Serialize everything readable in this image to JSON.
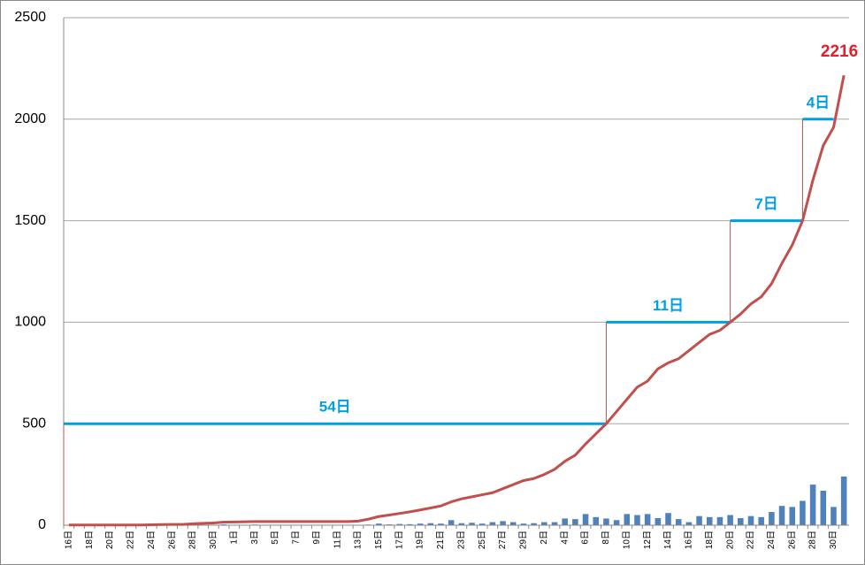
{
  "chart_data": {
    "type": "combo",
    "categories": [
      "16日",
      null,
      "18日",
      null,
      "20日",
      null,
      "22日",
      null,
      "24日",
      null,
      "26日",
      null,
      "28日",
      null,
      "30日",
      null,
      "1日",
      null,
      "3日",
      null,
      "5日",
      null,
      "7日",
      null,
      "9日",
      null,
      "11日",
      null,
      "13日",
      null,
      "15日",
      null,
      "17日",
      null,
      "19日",
      null,
      "21日",
      null,
      "23日",
      null,
      "25日",
      null,
      "27日",
      null,
      "29日",
      null,
      "2日",
      null,
      "4日",
      null,
      "6日",
      null,
      "8日",
      null,
      "10日",
      null,
      "12日",
      null,
      "14日",
      null,
      "16日",
      null,
      "18日",
      null,
      "20日",
      null,
      "22日",
      null,
      "24日",
      null,
      "26日",
      null,
      "28日",
      null,
      "30日",
      null
    ],
    "bars": {
      "color": "#4f81bd",
      "values": [
        1,
        0,
        0,
        0,
        0,
        0,
        0,
        0,
        1,
        1,
        1,
        0,
        3,
        2,
        2,
        4,
        1,
        1,
        3,
        0,
        0,
        0,
        0,
        0,
        0,
        0,
        2,
        1,
        2,
        3,
        8,
        4,
        6,
        5,
        8,
        10,
        8,
        25,
        10,
        12,
        8,
        15,
        20,
        15,
        8,
        10,
        15,
        15,
        33,
        30,
        55,
        40,
        33,
        25,
        55,
        50,
        55,
        35,
        60,
        30,
        15,
        45,
        40,
        40,
        50,
        35,
        45,
        40,
        65,
        95,
        90,
        120,
        200,
        170,
        90,
        240
      ]
    },
    "line": {
      "color": "#c0504d",
      "values": [
        1,
        1,
        1,
        1,
        1,
        1,
        1,
        1,
        2,
        3,
        4,
        4,
        7,
        9,
        11,
        15,
        16,
        17,
        18,
        18,
        18,
        18,
        18,
        18,
        18,
        18,
        18,
        18,
        20,
        30,
        43,
        50,
        58,
        66,
        75,
        85,
        95,
        115,
        130,
        140,
        150,
        160,
        180,
        200,
        220,
        230,
        250,
        275,
        315,
        345,
        400,
        450,
        500,
        560,
        620,
        680,
        710,
        770,
        800,
        820,
        860,
        900,
        940,
        960,
        1000,
        1040,
        1090,
        1125,
        1190,
        1290,
        1380,
        1500,
        1700,
        1870,
        1960,
        2216
      ]
    },
    "annotations": [
      {
        "label": "54日",
        "y": 500,
        "from": 0,
        "to": 52
      },
      {
        "label": "11日",
        "y": 1000,
        "from": 52,
        "to": 64
      },
      {
        "label": "7日",
        "y": 1500,
        "from": 64,
        "to": 71
      },
      {
        "label": "4日",
        "y": 2000,
        "from": 71,
        "to": 74
      }
    ],
    "annotation_color": "#00a0e0",
    "ylim": [
      0,
      2500
    ],
    "yticks": [
      0,
      500,
      1000,
      1500,
      2000,
      2500
    ],
    "grid": true
  }
}
